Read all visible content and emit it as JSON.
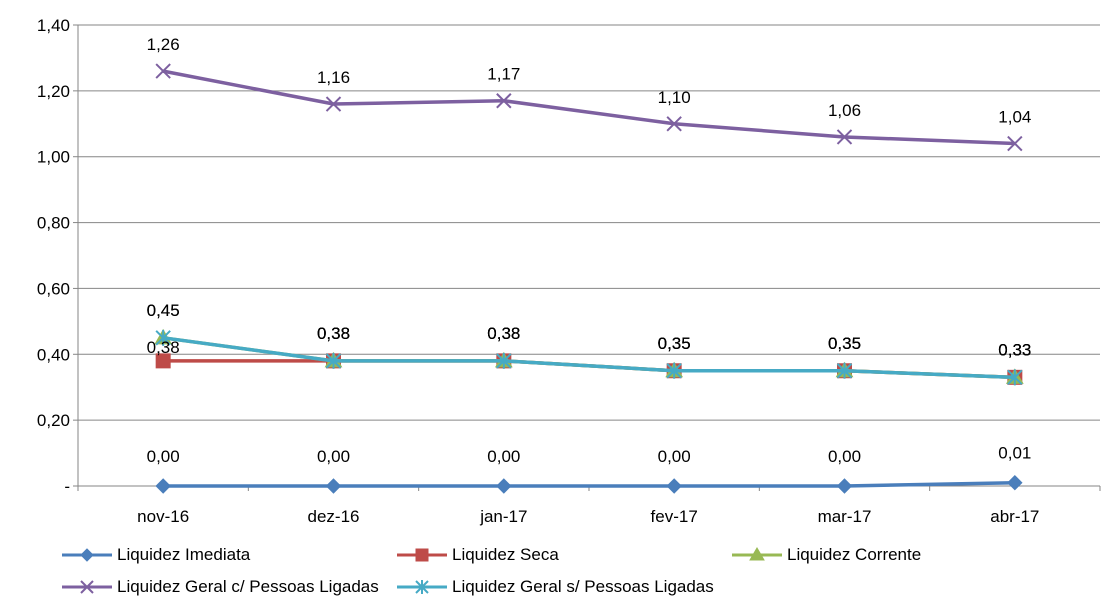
{
  "chart_data": {
    "type": "line",
    "categories": [
      "nov-16",
      "dez-16",
      "jan-17",
      "fev-17",
      "mar-17",
      "abr-17"
    ],
    "y_ticks": [
      "-",
      "0,20",
      "0,40",
      "0,60",
      "0,80",
      "1,00",
      "1,20",
      "1,40"
    ],
    "ylim": [
      0,
      1.4
    ],
    "grid": true,
    "legend_position": "bottom",
    "series": [
      {
        "name": "Liquidez Imediata",
        "color": "#4A7EBB",
        "marker": "diamond",
        "values": [
          0.0,
          0.0,
          0.0,
          0.0,
          0.0,
          0.01
        ],
        "labels": [
          "0,00",
          "0,00",
          "0,00",
          "0,00",
          "0,00",
          "0,01"
        ]
      },
      {
        "name": "Liquidez Seca",
        "color": "#BE4B48",
        "marker": "square",
        "values": [
          0.38,
          0.38,
          0.38,
          0.35,
          0.35,
          0.33
        ],
        "labels": [
          "0,38",
          "0,38",
          "0,38",
          "0,35",
          "0,35",
          "0,33"
        ]
      },
      {
        "name": "Liquidez Corrente",
        "color": "#98B954",
        "marker": "triangle",
        "values": [
          0.45,
          0.38,
          0.38,
          0.35,
          0.35,
          0.33
        ],
        "labels": [
          "0,45",
          "0,38",
          "0,38",
          "0,35",
          "0,35",
          "0,33"
        ]
      },
      {
        "name": "Liquidez Geral c/ Pessoas Ligadas",
        "color": "#7D60A0",
        "marker": "x",
        "values": [
          1.26,
          1.16,
          1.17,
          1.1,
          1.06,
          1.04
        ],
        "labels": [
          "1,26",
          "1,16",
          "1,17",
          "1,10",
          "1,06",
          "1,04"
        ]
      },
      {
        "name": "Liquidez Geral s/ Pessoas Ligadas",
        "color": "#46AAC5",
        "marker": "star",
        "values": [
          0.45,
          0.38,
          0.38,
          0.35,
          0.35,
          0.33
        ],
        "labels": [
          "0,45",
          "0,38",
          "0,38",
          "0,35",
          "0,35",
          "0,33"
        ]
      }
    ]
  }
}
